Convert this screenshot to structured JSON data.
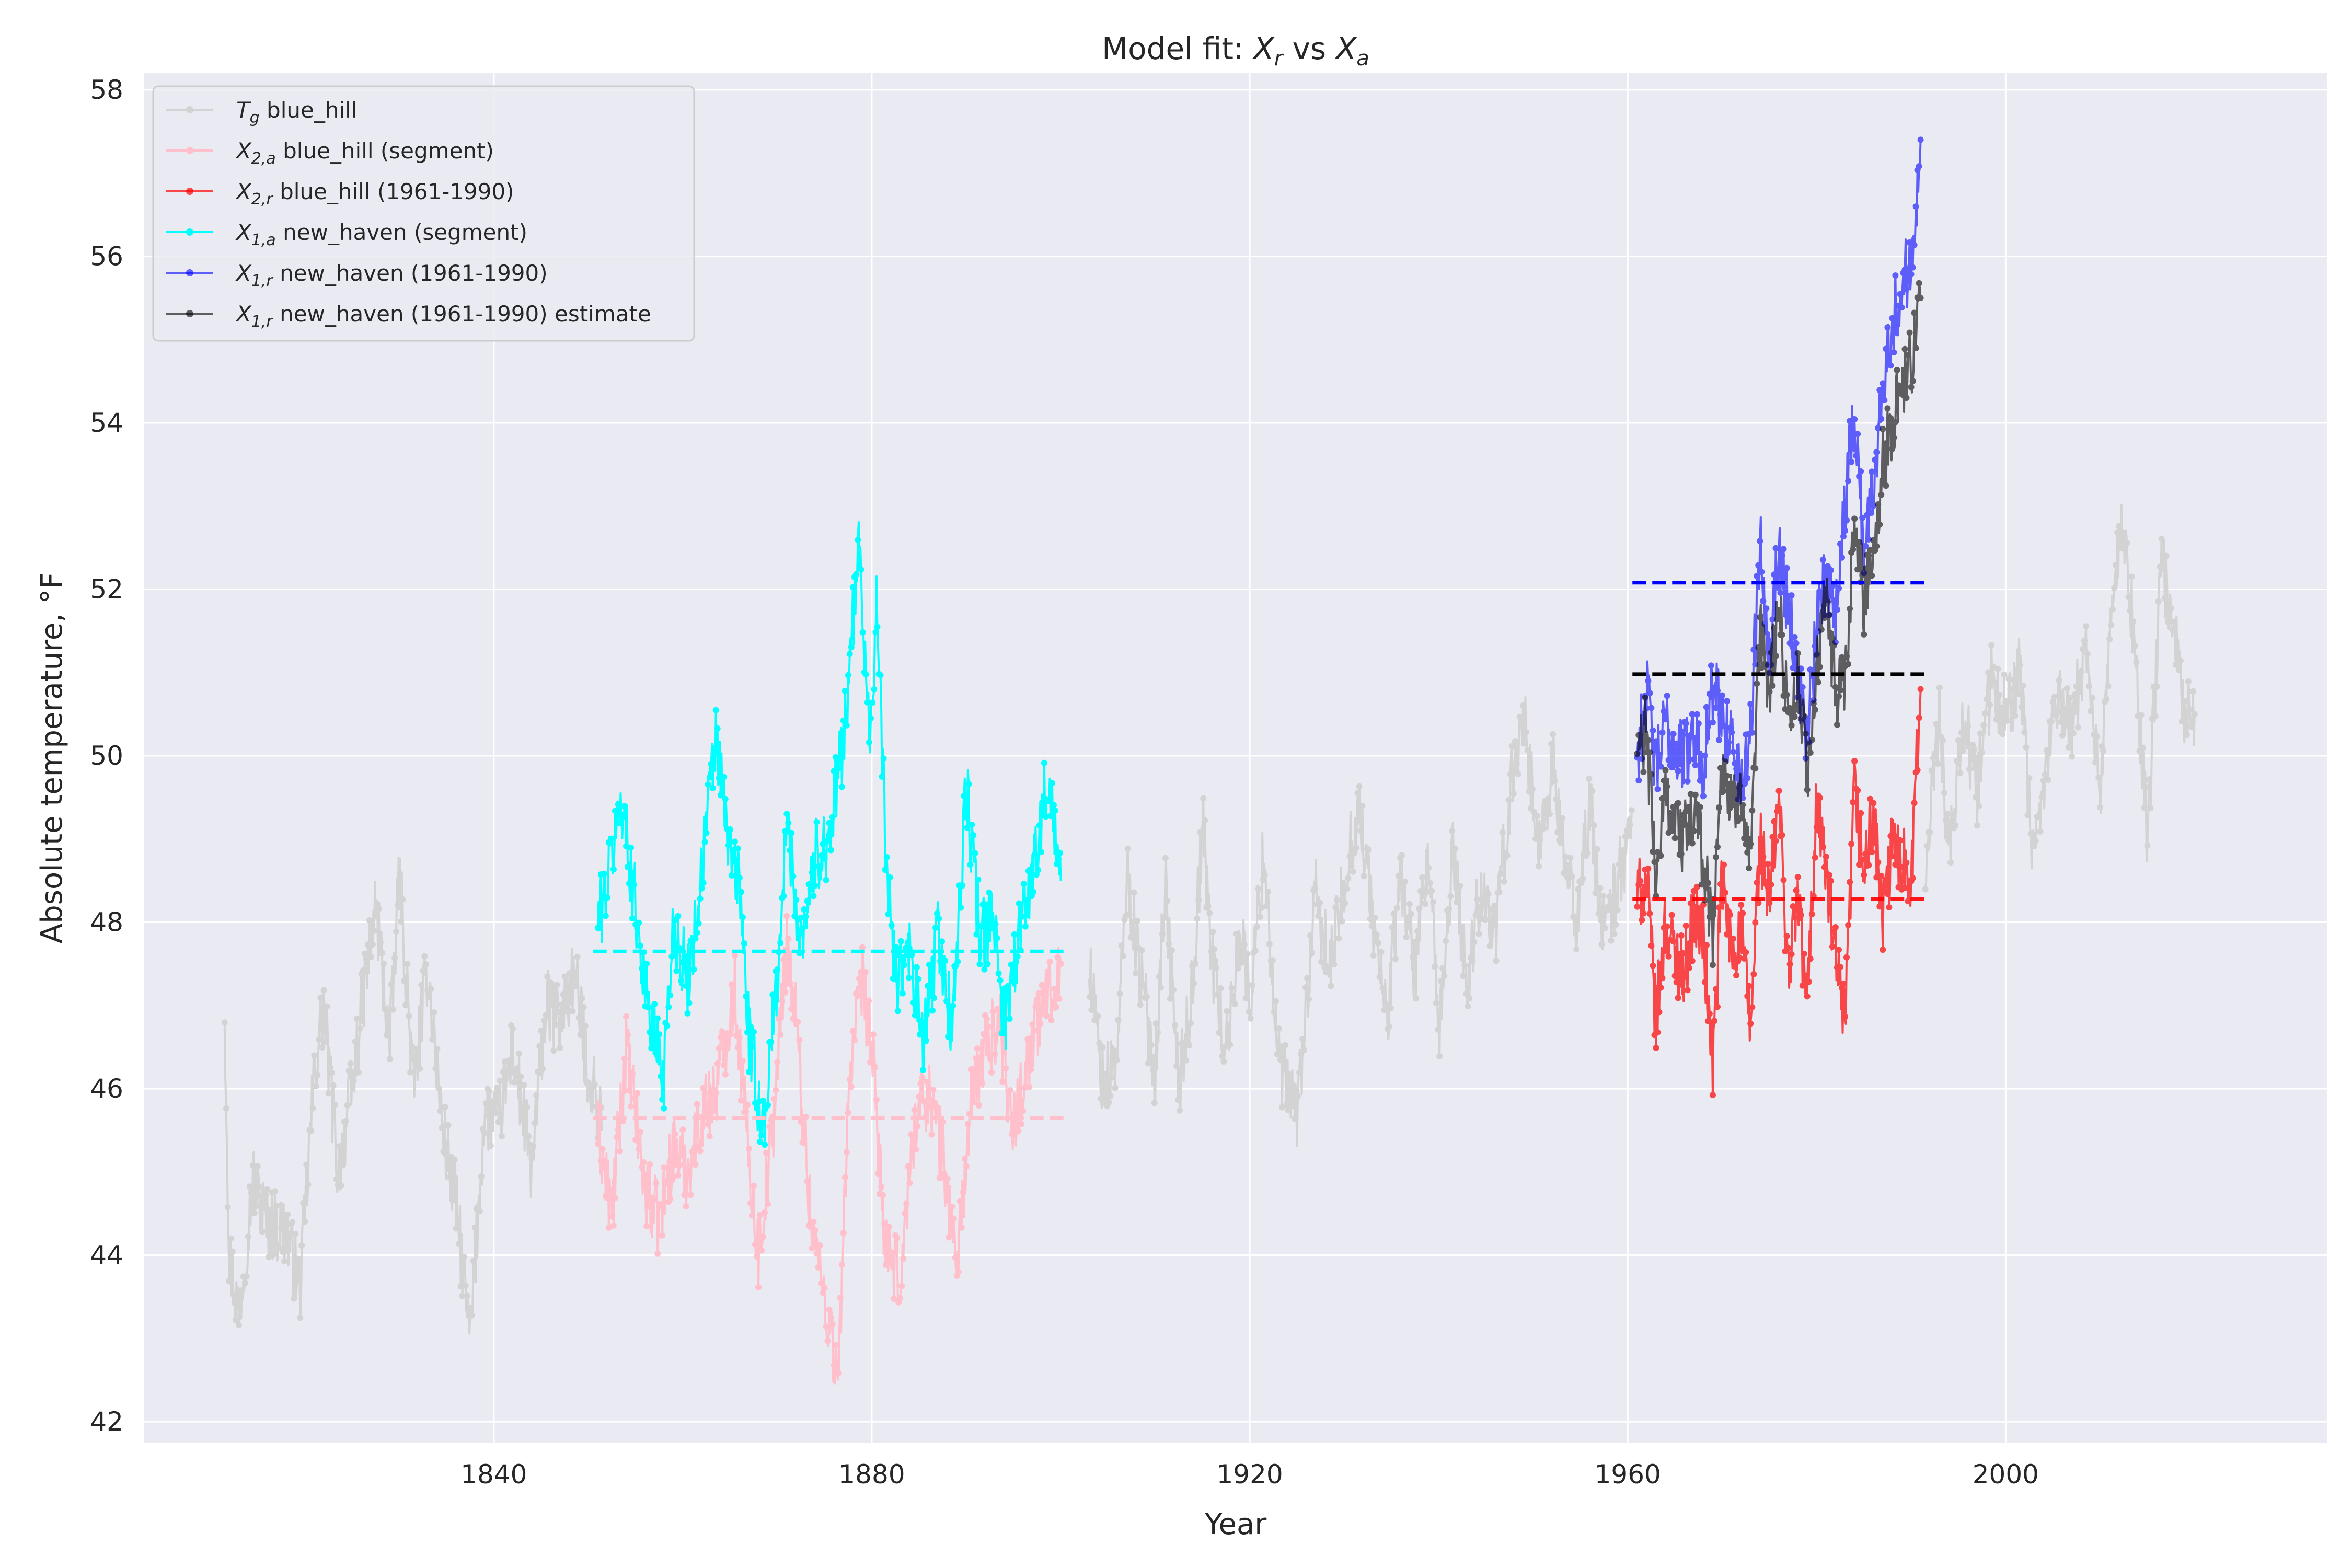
{
  "chart_data": {
    "type": "line",
    "title": {
      "prefix": "Model fit: ",
      "v1": "X",
      "v1_sub": "r",
      "mid": " vs ",
      "v2": "X",
      "v2_sub": "a"
    },
    "xlabel": "Year",
    "ylabel": "Absolute temperature, °F",
    "xlim": [
      1803,
      2034
    ],
    "ylim": [
      41.75,
      58.2
    ],
    "xticks": [
      1840,
      1880,
      1920,
      1960,
      2000
    ],
    "yticks": [
      42,
      44,
      46,
      48,
      50,
      52,
      54,
      56,
      58
    ],
    "grid": true,
    "legend_position": "top-left",
    "series": [
      {
        "key": "tg",
        "symbol": "T",
        "sub": "g",
        "label": " blue_hill",
        "color": "#d3d3d3",
        "alpha": 1.0,
        "anchors": [
          [
            1811.5,
            47.0
          ],
          [
            1812,
            44.0
          ],
          [
            1813,
            43.3
          ],
          [
            1814.5,
            44.9
          ],
          [
            1816,
            44.4
          ],
          [
            1818,
            44.3
          ],
          [
            1819.5,
            43.6
          ],
          [
            1821,
            46.2
          ],
          [
            1822,
            47.0
          ],
          [
            1823.5,
            45.0
          ],
          [
            1825,
            46.0
          ],
          [
            1826.5,
            47.4
          ],
          [
            1827.5,
            48.2
          ],
          [
            1829,
            46.5
          ],
          [
            1830,
            48.6
          ],
          [
            1831.5,
            46.0
          ],
          [
            1833,
            47.5
          ],
          [
            1834.5,
            45.6
          ],
          [
            1836,
            44.6
          ],
          [
            1837.5,
            43.0
          ],
          [
            1839,
            45.7
          ],
          [
            1840.5,
            45.6
          ],
          [
            1842,
            46.5
          ],
          [
            1844,
            45.0
          ],
          [
            1845.5,
            47.0
          ],
          [
            1847,
            46.8
          ],
          [
            1848.5,
            47.4
          ],
          [
            1850,
            46.2
          ],
          [
            1851.5,
            45.6
          ],
          [
            1903,
            47.5
          ],
          [
            1904.5,
            46.0
          ],
          [
            1906,
            46.4
          ],
          [
            1907,
            48.6
          ],
          [
            1908.5,
            47.3
          ],
          [
            1910,
            46.2
          ],
          [
            1911,
            48.5
          ],
          [
            1912.5,
            46.0
          ],
          [
            1914,
            47.3
          ],
          [
            1915,
            49.2
          ],
          [
            1916,
            47.6
          ],
          [
            1917.5,
            46.4
          ],
          [
            1919,
            48.0
          ],
          [
            1920,
            47.0
          ],
          [
            1921.5,
            48.9
          ],
          [
            1923,
            46.3
          ],
          [
            1925,
            45.7
          ],
          [
            1927,
            48.3
          ],
          [
            1928.5,
            47.4
          ],
          [
            1930,
            48.5
          ],
          [
            1931.5,
            49.4
          ],
          [
            1933,
            48.1
          ],
          [
            1934.5,
            46.8
          ],
          [
            1936,
            48.6
          ],
          [
            1937.5,
            47.4
          ],
          [
            1939,
            48.8
          ],
          [
            1940,
            46.5
          ],
          [
            1941.5,
            48.9
          ],
          [
            1943,
            47.2
          ],
          [
            1944.5,
            48.5
          ],
          [
            1946,
            47.8
          ],
          [
            1947.5,
            49.5
          ],
          [
            1949,
            50.6
          ],
          [
            1950.5,
            48.8
          ],
          [
            1952,
            49.9
          ],
          [
            1953,
            49.0
          ],
          [
            1954.5,
            48.0
          ],
          [
            1956,
            49.4
          ],
          [
            1957.5,
            47.8
          ],
          [
            1959,
            48.5
          ],
          [
            1960.5,
            49.2
          ],
          [
            1991.5,
            48.6
          ],
          [
            1993,
            50.5
          ],
          [
            1994,
            48.7
          ],
          [
            1995.5,
            50.5
          ],
          [
            1997,
            49.6
          ],
          [
            1998.5,
            50.9
          ],
          [
            2000,
            50.5
          ],
          [
            2001.5,
            51.0
          ],
          [
            2003,
            48.6
          ],
          [
            2004,
            49.6
          ],
          [
            2005.5,
            50.8
          ],
          [
            2007,
            50.3
          ],
          [
            2008.5,
            51.4
          ],
          [
            2010,
            49.5
          ],
          [
            2011,
            51.6
          ],
          [
            2012.5,
            52.8
          ],
          [
            2013.5,
            51.5
          ],
          [
            2015,
            49.0
          ],
          [
            2016.5,
            52.3
          ],
          [
            2017.5,
            51.8
          ],
          [
            2019,
            50.5
          ],
          [
            2020,
            50.5
          ]
        ]
      },
      {
        "key": "x2a",
        "symbol": "X",
        "sub": "2,a",
        "label": " blue_hill (segment)",
        "color": "#ffc0cb",
        "alpha": 1.0,
        "anchors": [
          [
            1851,
            45.5
          ],
          [
            1852.5,
            44.5
          ],
          [
            1854,
            46.5
          ],
          [
            1856,
            44.8
          ],
          [
            1857.5,
            44.4
          ],
          [
            1859,
            45.3
          ],
          [
            1860.5,
            45.0
          ],
          [
            1862,
            45.7
          ],
          [
            1863.5,
            46.0
          ],
          [
            1865.5,
            47.2
          ],
          [
            1866.5,
            45.8
          ],
          [
            1868,
            44.0
          ],
          [
            1869.5,
            45.5
          ],
          [
            1871,
            47.8
          ],
          [
            1872,
            46.8
          ],
          [
            1873.5,
            44.5
          ],
          [
            1875,
            43.5
          ],
          [
            1876.5,
            42.5
          ],
          [
            1877.5,
            46.0
          ],
          [
            1879,
            47.3
          ],
          [
            1880,
            46.5
          ],
          [
            1881.5,
            44.0
          ],
          [
            1883,
            43.7
          ],
          [
            1884.5,
            45.6
          ],
          [
            1886,
            46.0
          ],
          [
            1887.5,
            45.2
          ],
          [
            1889,
            43.9
          ],
          [
            1890.5,
            45.8
          ],
          [
            1892,
            46.5
          ],
          [
            1893.5,
            46.8
          ],
          [
            1895,
            45.5
          ],
          [
            1896.5,
            46.4
          ],
          [
            1898.5,
            47.1
          ],
          [
            1900,
            47.5
          ]
        ]
      },
      {
        "key": "x2r",
        "symbol": "X",
        "sub": "2,r",
        "label": " blue_hill (1961-1990)",
        "color": "#ff0000",
        "alpha": 0.7,
        "anchors": [
          [
            1961,
            48.3
          ],
          [
            1962,
            48.5
          ],
          [
            1963,
            46.8
          ],
          [
            1964,
            48.0
          ],
          [
            1965,
            47.6
          ],
          [
            1966,
            47.4
          ],
          [
            1967,
            48.1
          ],
          [
            1968,
            47.8
          ],
          [
            1969,
            46.3
          ],
          [
            1970,
            48.5
          ],
          [
            1971,
            47.6
          ],
          [
            1972,
            47.9
          ],
          [
            1973,
            46.7
          ],
          [
            1974,
            49.0
          ],
          [
            1975,
            48.2
          ],
          [
            1976,
            49.5
          ],
          [
            1977,
            47.4
          ],
          [
            1978,
            48.3
          ],
          [
            1979,
            47.0
          ],
          [
            1980,
            49.5
          ],
          [
            1981,
            48.6
          ],
          [
            1982,
            47.5
          ],
          [
            1983,
            46.7
          ],
          [
            1984,
            49.6
          ],
          [
            1985,
            48.6
          ],
          [
            1986,
            49.3
          ],
          [
            1987,
            48.0
          ],
          [
            1988,
            48.9
          ],
          [
            1989,
            48.8
          ],
          [
            1990,
            48.6
          ],
          [
            1991,
            50.8
          ]
        ]
      },
      {
        "key": "x1a",
        "symbol": "X",
        "sub": "1,a",
        "label": " new_haven (segment)",
        "color": "#00ffff",
        "alpha": 1.0,
        "anchors": [
          [
            1851,
            48.0
          ],
          [
            1852,
            48.5
          ],
          [
            1853.5,
            49.5
          ],
          [
            1855,
            48.2
          ],
          [
            1856.5,
            46.8
          ],
          [
            1858,
            46.2
          ],
          [
            1859,
            48.0
          ],
          [
            1860.5,
            47.3
          ],
          [
            1861.5,
            48.1
          ],
          [
            1862.5,
            49.2
          ],
          [
            1863.5,
            50.2
          ],
          [
            1865,
            48.8
          ],
          [
            1866,
            48.5
          ],
          [
            1867,
            46.6
          ],
          [
            1868.5,
            45.5
          ],
          [
            1870,
            47.3
          ],
          [
            1871,
            49.2
          ],
          [
            1872.5,
            47.8
          ],
          [
            1874,
            48.8
          ],
          [
            1875.5,
            49.0
          ],
          [
            1877,
            50.2
          ],
          [
            1878,
            51.6
          ],
          [
            1878.7,
            52.5
          ],
          [
            1879.8,
            50.2
          ],
          [
            1880.5,
            51.8
          ],
          [
            1881.5,
            48.8
          ],
          [
            1882.5,
            47.3
          ],
          [
            1884,
            47.6
          ],
          [
            1885.5,
            46.5
          ],
          [
            1887,
            47.9
          ],
          [
            1888.5,
            46.7
          ],
          [
            1890,
            49.6
          ],
          [
            1891.5,
            47.8
          ],
          [
            1893,
            48.0
          ],
          [
            1894,
            46.8
          ],
          [
            1895.5,
            47.8
          ],
          [
            1897,
            48.6
          ],
          [
            1898.5,
            49.7
          ],
          [
            1900,
            48.5
          ]
        ]
      },
      {
        "key": "x1r",
        "symbol": "X",
        "sub": "1,r",
        "label": " new_haven (1961-1990)",
        "color": "#0000ff",
        "alpha": 0.6,
        "anchors": [
          [
            1961,
            50.0
          ],
          [
            1962,
            50.8
          ],
          [
            1963,
            49.8
          ],
          [
            1964,
            50.4
          ],
          [
            1965,
            50.1
          ],
          [
            1966,
            50.0
          ],
          [
            1967,
            50.3
          ],
          [
            1968,
            49.9
          ],
          [
            1969,
            50.8
          ],
          [
            1970,
            50.5
          ],
          [
            1971,
            50.2
          ],
          [
            1972,
            49.6
          ],
          [
            1973,
            50.3
          ],
          [
            1974,
            52.6
          ],
          [
            1975,
            51.3
          ],
          [
            1976,
            52.5
          ],
          [
            1977,
            51.8
          ],
          [
            1978,
            51.0
          ],
          [
            1979,
            50.2
          ],
          [
            1980,
            51.5
          ],
          [
            1981,
            52.2
          ],
          [
            1982,
            51.8
          ],
          [
            1983,
            53.0
          ],
          [
            1984,
            54.2
          ],
          [
            1985,
            52.5
          ],
          [
            1986,
            53.2
          ],
          [
            1987,
            54.6
          ],
          [
            1988,
            55.2
          ],
          [
            1989,
            55.6
          ],
          [
            1990,
            56.0
          ],
          [
            1991,
            57.4
          ]
        ]
      },
      {
        "key": "x1r_est",
        "symbol": "X",
        "sub": "1,r",
        "label": " new_haven (1961-1990) estimate",
        "color": "#000000",
        "alpha": 0.6,
        "anchors": [
          [
            1961,
            50.0
          ],
          [
            1962,
            50.3
          ],
          [
            1963,
            48.5
          ],
          [
            1964,
            49.6
          ],
          [
            1965,
            49.2
          ],
          [
            1966,
            49.0
          ],
          [
            1967,
            49.3
          ],
          [
            1968,
            48.8
          ],
          [
            1969,
            47.9
          ],
          [
            1970,
            50.0
          ],
          [
            1971,
            49.3
          ],
          [
            1972,
            49.7
          ],
          [
            1973,
            48.5
          ],
          [
            1974,
            51.5
          ],
          [
            1975,
            50.8
          ],
          [
            1976,
            51.8
          ],
          [
            1977,
            50.5
          ],
          [
            1978,
            50.9
          ],
          [
            1979,
            49.8
          ],
          [
            1980,
            51.0
          ],
          [
            1981,
            51.9
          ],
          [
            1982,
            50.8
          ],
          [
            1983,
            50.7
          ],
          [
            1984,
            52.8
          ],
          [
            1985,
            51.9
          ],
          [
            1986,
            52.5
          ],
          [
            1987,
            53.5
          ],
          [
            1988,
            54.0
          ],
          [
            1989,
            54.5
          ],
          [
            1990,
            54.7
          ],
          [
            1991,
            55.5
          ]
        ]
      }
    ],
    "means": [
      {
        "color": "#00ffff",
        "alpha": 1.0,
        "x": [
          1850.5,
          1900.5
        ],
        "y": 47.65
      },
      {
        "color": "#ffc0cb",
        "alpha": 1.0,
        "x": [
          1850.5,
          1900.5
        ],
        "y": 45.65
      },
      {
        "color": "#0000ff",
        "alpha": 1.0,
        "x": [
          1960.5,
          1991.5
        ],
        "y": 52.08
      },
      {
        "color": "#000000",
        "alpha": 1.0,
        "x": [
          1960.5,
          1991.5
        ],
        "y": 50.98
      },
      {
        "color": "#ff0000",
        "alpha": 0.9,
        "x": [
          1960.5,
          1991.5
        ],
        "y": 48.28
      }
    ]
  }
}
